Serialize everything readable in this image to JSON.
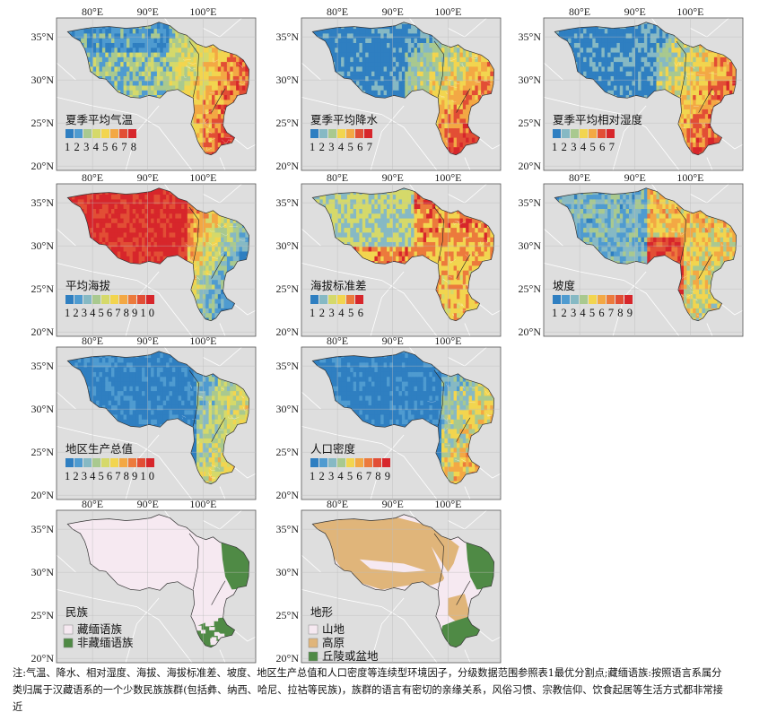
{
  "axes": {
    "x_ticks": [
      "80°E",
      "90°E",
      "100°E"
    ],
    "y_ticks": [
      "35°N",
      "30°N",
      "25°N",
      "20°N"
    ]
  },
  "panels": [
    {
      "id": "summer-temp",
      "title": "夏季平均气温",
      "legend_numbers": "12345678",
      "classes": 8,
      "pattern": "temp"
    },
    {
      "id": "summer-precip",
      "title": "夏季平均降水",
      "legend_numbers": "1234567",
      "classes": 7,
      "pattern": "precip"
    },
    {
      "id": "summer-humidity",
      "title": "夏季平均相对湿度",
      "legend_numbers": "1234567",
      "classes": 7,
      "pattern": "humid"
    },
    {
      "id": "mean-elevation",
      "title": "平均海拔",
      "legend_numbers": "12345678910",
      "classes": 10,
      "pattern": "elev"
    },
    {
      "id": "elevation-std",
      "title": "海拔标准差",
      "legend_numbers": "123456",
      "classes": 6,
      "pattern": "elevsd"
    },
    {
      "id": "slope",
      "title": "坡度",
      "legend_numbers": "123456789",
      "classes": 9,
      "pattern": "slope"
    },
    {
      "id": "gdp",
      "title": "地区生产总值",
      "legend_numbers": "12345678910",
      "classes": 10,
      "pattern": "gdp"
    },
    {
      "id": "pop-density",
      "title": "人口密度",
      "legend_numbers": "123456789",
      "classes": 9,
      "pattern": "pop"
    },
    {
      "id": "ethnicity",
      "title": "民族",
      "categories": [
        "藏缅语族",
        "非藏缅语族"
      ],
      "category_colors": [
        "#f6e9f1",
        "#4f8a45"
      ],
      "pattern": "ethnic"
    },
    {
      "id": "landform",
      "title": "地形",
      "categories": [
        "山地",
        "高原",
        "丘陵或盆地"
      ],
      "category_colors": [
        "#f6e9f1",
        "#e0b57a",
        "#4f8a45"
      ],
      "pattern": "landform"
    }
  ],
  "ramp_colors": [
    "#2f7fc1",
    "#4f9bd0",
    "#86b9c4",
    "#a9c98f",
    "#d5d96a",
    "#f2d54f",
    "#f3a844",
    "#ec7a3c",
    "#e24e35",
    "#d7262b"
  ],
  "note": "注:气温、降水、相对湿度、海拔、海拔标准差、坡度、地区生产总值和人口密度等连续型环境因子，分级数据范围参照表1最优分割点;藏缅语族:按照语言系属分类归属于汉藏语系的一个少数民族族群(包括彝、纳西、哈尼、拉祜等民族)，族群的语言有密切的亲缘关系，风俗习惯、宗教信仰、饮食起居等生活方式都非常接近"
}
